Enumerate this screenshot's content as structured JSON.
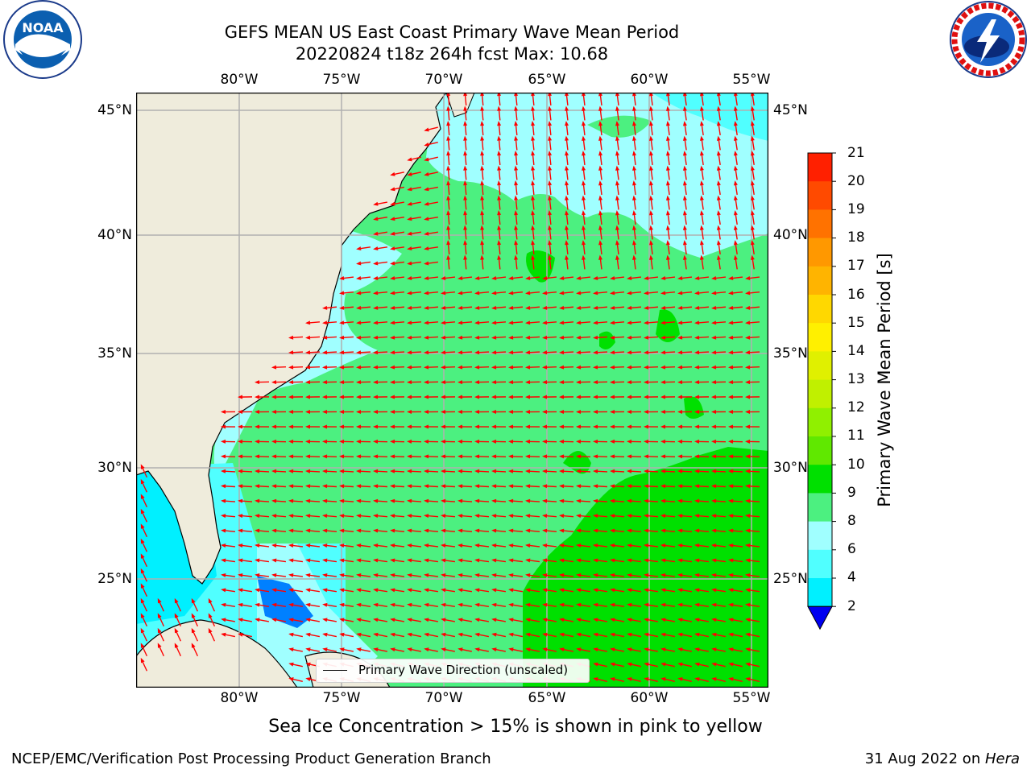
{
  "title": {
    "line1": "GEFS MEAN US East Coast Primary Wave Mean Period",
    "line2": "20220824 t18z 264h fcst   Max: 10.68"
  },
  "map": {
    "lon_ticks": [
      "80°W",
      "75°W",
      "70°W",
      "65°W",
      "60°W",
      "55°W"
    ],
    "lat_ticks": [
      "45°N",
      "40°N",
      "35°N",
      "30°N",
      "25°N"
    ],
    "land_color": "#efecdc",
    "grid_color": "#b0b0b0",
    "arrow_color": "#ff0000",
    "legend_label": "Primary Wave Direction (unscaled)"
  },
  "colorbar": {
    "label": "Primary Wave Mean Period [s]",
    "ticks": [
      "21",
      "20",
      "19",
      "18",
      "17",
      "16",
      "15",
      "14",
      "13",
      "12",
      "11",
      "10",
      "9",
      "8",
      "6",
      "4",
      "2"
    ],
    "colors": [
      "#ff0000",
      "#ff2000",
      "#ff4a00",
      "#ff7200",
      "#ff9800",
      "#ffb400",
      "#ffd800",
      "#fff000",
      "#e0f000",
      "#c0f000",
      "#90f000",
      "#60e800",
      "#00e000",
      "#4cf080",
      "#a0ffff",
      "#50ffff",
      "#00f0ff",
      "#00c8ff",
      "#0080ff",
      "#0000f0"
    ]
  },
  "logos": {
    "noaa_text": "NOAA",
    "nws_text": "NATIONAL WEATHER SERVICE"
  },
  "note": "Sea Ice Concentration > 15% is shown in pink to yellow",
  "footer": {
    "left": "NCEP/EMC/Verification Post Processing Product Generation Branch",
    "right_date": "31 Aug 2022 on ",
    "right_machine": "Hera"
  }
}
